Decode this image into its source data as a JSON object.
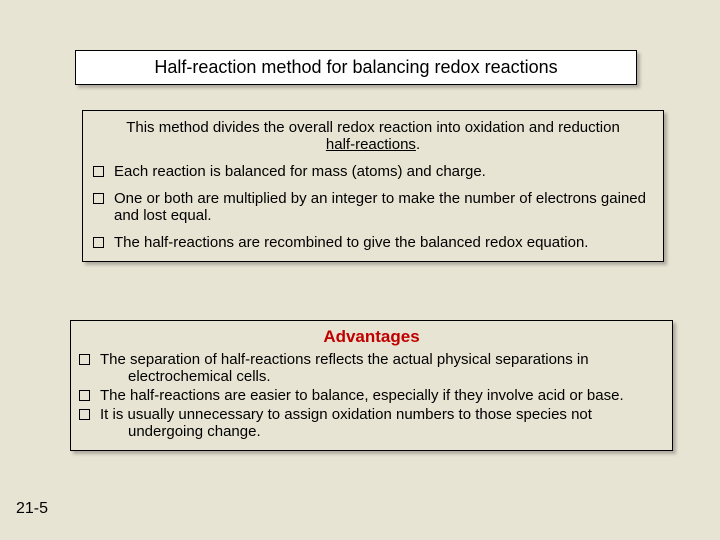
{
  "title": "Half-reaction method for balancing redox reactions",
  "intro_pre": "This method divides the overall redox reaction into oxidation and reduction ",
  "intro_underline": "half-reactions",
  "intro_post": ".",
  "bullets": {
    "b0": "Each reaction is balanced for mass (atoms) and charge.",
    "b1": "One or both are multiplied by an integer to make the number of electrons gained and lost equal.",
    "b2": "The half-reactions are recombined to give the balanced redox equation."
  },
  "advantages_title": "Advantages",
  "advantages": {
    "a0": "The separation of half-reactions reflects the actual physical separations in electrochemical cells.",
    "a1": "The half-reactions are easier to balance, especially if they involve acid or base.",
    "a2": "It is usually unnecessary to assign oxidation numbers to those species not undergoing change."
  },
  "page_number": "21-5",
  "colors": {
    "background": "#e8e4d4",
    "advantage_title": "#c00000"
  }
}
